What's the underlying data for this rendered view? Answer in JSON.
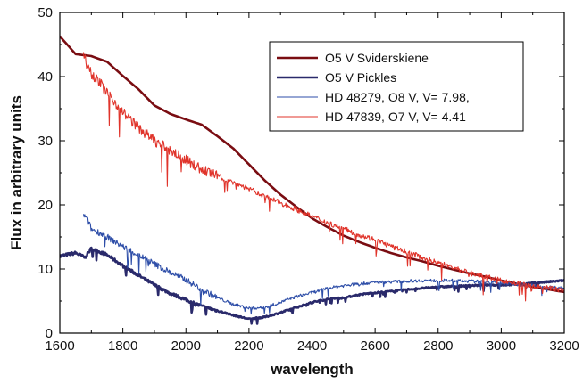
{
  "chart_data": {
    "type": "line",
    "title": "",
    "xlabel": "wavelength",
    "ylabel": "Flux in arbitrary units",
    "xlim": [
      1600,
      3200
    ],
    "ylim": [
      0,
      50
    ],
    "xticks": [
      "1600",
      "1800",
      "2000",
      "2200",
      "2400",
      "2600",
      "2800",
      "3000",
      "3200"
    ],
    "yticks": [
      "0",
      "10",
      "20",
      "30",
      "40",
      "50"
    ],
    "legend_position": "top-right",
    "grid": false,
    "series": [
      {
        "name": "O5 V Sviderskiene",
        "color": "#7a0d12",
        "width": 2.6,
        "noise": 0,
        "x": [
          1600,
          1650,
          1700,
          1750,
          1800,
          1850,
          1900,
          1950,
          2000,
          2050,
          2100,
          2150,
          2200,
          2250,
          2300,
          2350,
          2400,
          2450,
          2500,
          2550,
          2600,
          2650,
          2700,
          2750,
          2800,
          2850,
          2900,
          2950,
          3000,
          3050,
          3100,
          3150,
          3200
        ],
        "y": [
          46.3,
          43.5,
          43.2,
          42.3,
          40.1,
          38.0,
          35.5,
          34.2,
          33.3,
          32.5,
          30.7,
          28.8,
          26.3,
          23.8,
          21.6,
          19.7,
          17.9,
          16.5,
          15.2,
          14.2,
          13.3,
          12.5,
          11.8,
          11.2,
          10.5,
          9.9,
          9.3,
          8.8,
          8.2,
          7.7,
          7.2,
          6.8,
          6.4
        ]
      },
      {
        "name": "O5 V Pickles",
        "color": "#2a2a6b",
        "width": 2.6,
        "noise": 0.3,
        "x": [
          1600,
          1620,
          1650,
          1680,
          1700,
          1720,
          1750,
          1800,
          1850,
          1900,
          1950,
          2000,
          2050,
          2100,
          2150,
          2200,
          2250,
          2300,
          2350,
          2400,
          2450,
          2500,
          2550,
          2600,
          2650,
          2700,
          2750,
          2800,
          2850,
          2900,
          2950,
          3000,
          3050,
          3100,
          3150,
          3200
        ],
        "y": [
          12.0,
          12.2,
          12.5,
          11.8,
          13.2,
          12.8,
          12.2,
          10.5,
          9.0,
          7.5,
          6.2,
          5.2,
          4.2,
          3.5,
          2.8,
          2.2,
          2.5,
          3.2,
          4.0,
          4.8,
          5.3,
          5.5,
          6.0,
          6.3,
          6.5,
          6.8,
          7.0,
          7.2,
          7.3,
          7.4,
          7.5,
          7.5,
          7.6,
          7.8,
          8.0,
          8.2
        ]
      },
      {
        "name": "HD 48279, O8 V, V= 7.98,",
        "color": "#2e4ea8",
        "width": 1.1,
        "noise": 0.6,
        "x": [
          1675,
          1690,
          1700,
          1720,
          1750,
          1800,
          1850,
          1900,
          1950,
          2000,
          2050,
          2100,
          2150,
          2200,
          2250,
          2300,
          2350,
          2400,
          2450,
          2500,
          2550,
          2600,
          2650,
          2700,
          2750,
          2800,
          2850,
          2900,
          2950,
          3000,
          3050,
          3100,
          3150,
          3200
        ],
        "y": [
          18.5,
          17.5,
          16.2,
          15.8,
          15.0,
          13.5,
          12.2,
          10.8,
          9.5,
          8.3,
          6.8,
          5.5,
          4.5,
          3.9,
          4.0,
          4.8,
          5.7,
          6.3,
          7.0,
          7.4,
          7.7,
          7.9,
          8.0,
          8.1,
          8.2,
          8.2,
          8.2,
          8.1,
          8.0,
          7.8,
          7.6,
          7.4,
          7.2,
          7.0
        ]
      },
      {
        "name": "HD 47839, O7 V, V= 4.41",
        "color": "#e0342b",
        "width": 1.1,
        "noise": 1.0,
        "x": [
          1675,
          1690,
          1700,
          1720,
          1750,
          1800,
          1850,
          1900,
          1950,
          2000,
          2050,
          2100,
          2150,
          2200,
          2250,
          2300,
          2350,
          2400,
          2450,
          2500,
          2550,
          2600,
          2650,
          2700,
          2750,
          2800,
          2850,
          2900,
          2950,
          3000,
          3050,
          3100,
          3150,
          3200
        ],
        "y": [
          43.5,
          42.0,
          40.5,
          39.5,
          37.5,
          34.5,
          32.0,
          30.0,
          28.5,
          27.0,
          25.5,
          24.5,
          23.5,
          22.5,
          21.3,
          20.3,
          19.3,
          18.2,
          17.2,
          16.3,
          15.3,
          14.6,
          13.5,
          12.7,
          11.8,
          11.0,
          10.2,
          9.4,
          8.8,
          8.2,
          7.7,
          7.3,
          7.0,
          6.7
        ]
      }
    ]
  }
}
